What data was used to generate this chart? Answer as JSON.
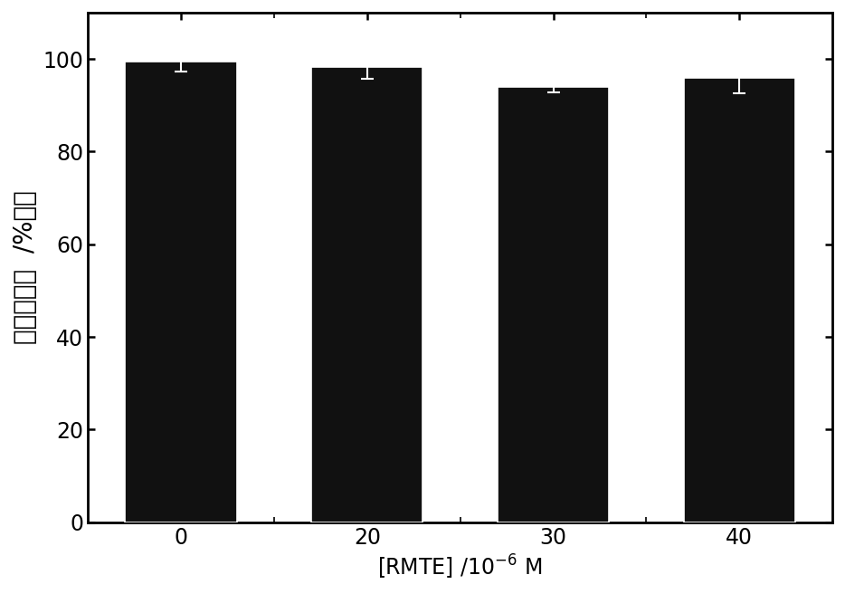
{
  "categories": [
    "0",
    "20",
    "30",
    "40"
  ],
  "x_positions": [
    0,
    1,
    2,
    3
  ],
  "values": [
    99.5,
    98.2,
    94.0,
    96.0
  ],
  "errors": [
    2.2,
    2.5,
    1.2,
    3.5
  ],
  "bar_color": "#111111",
  "bar_width": 0.6,
  "bar_edge_color": "#ffffff",
  "bar_edge_width": 1.2,
  "ylabel": "细胞存活率  /%对照",
  "xlabel": "[RMTE] /10$^{-6}$ M",
  "ylim": [
    0,
    110
  ],
  "yticks": [
    0,
    20,
    40,
    60,
    80,
    100
  ],
  "title": "",
  "background_color": "#ffffff",
  "ylabel_fontsize": 20,
  "xlabel_fontsize": 17,
  "tick_fontsize": 17,
  "errorbar_color": "#ffffff",
  "errorbar_linewidth": 1.5,
  "errorbar_capsize": 5,
  "errorbar_capthick": 1.5,
  "spine_linewidth": 2.0,
  "xlim": [
    -0.5,
    3.5
  ]
}
